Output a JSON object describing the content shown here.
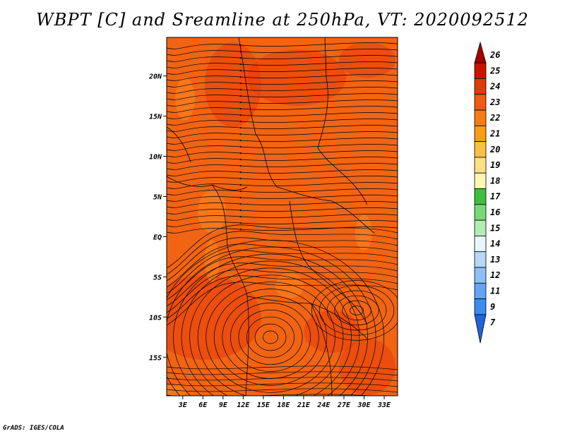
{
  "title": "WBPT [C] and Sreamline at 250hPa, VT: 2020092512",
  "credit": "GrADS: IGES/COLA",
  "map": {
    "fill_color": "#f06414",
    "hot_color": "#e83c0a",
    "cool_color": "#f87c1e",
    "lat_ticks": [
      {
        "label": "20N",
        "lat": 20
      },
      {
        "label": "15N",
        "lat": 15
      },
      {
        "label": "10N",
        "lat": 10
      },
      {
        "label": "5N",
        "lat": 5
      },
      {
        "label": "EQ",
        "lat": 0
      },
      {
        "label": "5S",
        "lat": -5
      },
      {
        "label": "10S",
        "lat": -10
      },
      {
        "label": "15S",
        "lat": -15
      }
    ],
    "lon_ticks": [
      {
        "label": "3E",
        "lon": 3
      },
      {
        "label": "6E",
        "lon": 6
      },
      {
        "label": "9E",
        "lon": 9
      },
      {
        "label": "12E",
        "lon": 12
      },
      {
        "label": "15E",
        "lon": 15
      },
      {
        "label": "18E",
        "lon": 18
      },
      {
        "label": "21E",
        "lon": 21
      },
      {
        "label": "24E",
        "lon": 24
      },
      {
        "label": "27E",
        "lon": 27
      },
      {
        "label": "30E",
        "lon": 30
      },
      {
        "label": "33E",
        "lon": 33
      }
    ]
  },
  "colorbar": {
    "levels": [
      {
        "label": "26",
        "color": "#a50000"
      },
      {
        "label": "25",
        "color": "#c81400"
      },
      {
        "label": "24",
        "color": "#e03c0a"
      },
      {
        "label": "23",
        "color": "#f05a14"
      },
      {
        "label": "22",
        "color": "#f87c14"
      },
      {
        "label": "21",
        "color": "#fa9e14"
      },
      {
        "label": "20",
        "color": "#fcc040"
      },
      {
        "label": "19",
        "color": "#fde080"
      },
      {
        "label": "18",
        "color": "#fff6b4"
      },
      {
        "label": "17",
        "color": "#3cc03c"
      },
      {
        "label": "16",
        "color": "#78d878"
      },
      {
        "label": "15",
        "color": "#b4ecb4"
      },
      {
        "label": "14",
        "color": "#e6f8fc"
      },
      {
        "label": "13",
        "color": "#b4d8fa"
      },
      {
        "label": "12",
        "color": "#8cc0f8"
      },
      {
        "label": "11",
        "color": "#64a4f4"
      },
      {
        "label": "9",
        "color": "#3c8cf0"
      },
      {
        "label": "7",
        "color": "#1e64dc"
      }
    ]
  }
}
